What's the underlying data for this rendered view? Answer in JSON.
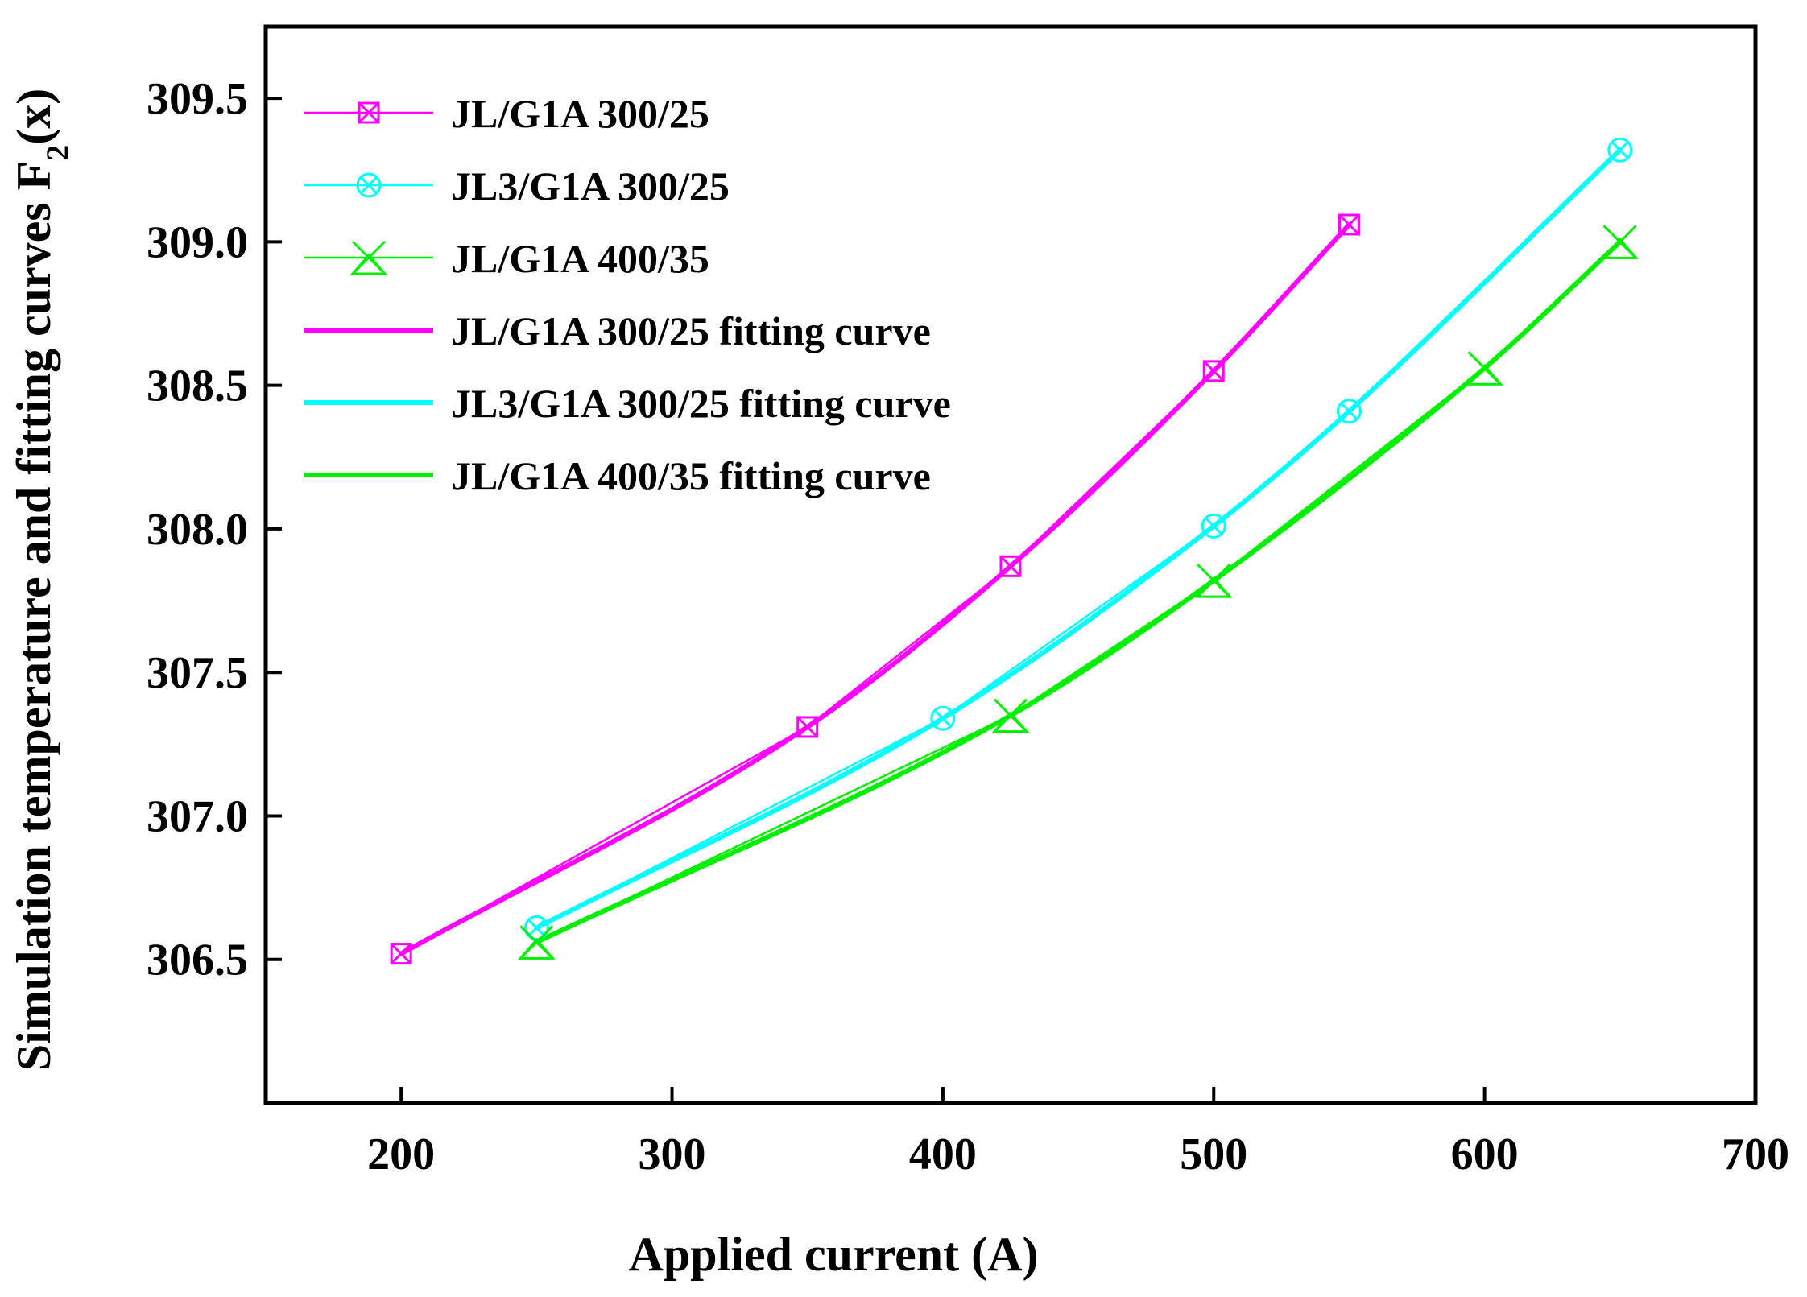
{
  "chart_data": {
    "type": "line",
    "title": "",
    "xlabel": "Applied current (A)",
    "ylabel": "Simulation temperature and fitting curves F",
    "ylabel_sub": "2",
    "ylabel_tail": "(x)",
    "xlim": [
      150,
      700
    ],
    "ylim": [
      306.0,
      309.75
    ],
    "xticks": [
      200,
      300,
      400,
      500,
      600,
      700
    ],
    "yticks": [
      306.5,
      307.0,
      307.5,
      308.0,
      308.5,
      309.0,
      309.5
    ],
    "xtick_labels": [
      "200",
      "300",
      "400",
      "500",
      "600",
      "700"
    ],
    "ytick_labels": [
      "306.5",
      "307.0",
      "307.5",
      "308.0",
      "308.5",
      "309.0",
      "309.5"
    ],
    "legend_position": "top-left",
    "series": [
      {
        "name": "JL/G1A 300/25",
        "kind": "simulation",
        "marker": "square-x",
        "color": "#ff00ff",
        "x": [
          200,
          350,
          425,
          500,
          550
        ],
        "y": [
          306.52,
          307.31,
          307.87,
          308.55,
          309.06
        ]
      },
      {
        "name": "JL3/G1A 300/25",
        "kind": "simulation",
        "marker": "circle-x",
        "color": "#00ffff",
        "x": [
          250,
          400,
          500,
          550,
          650
        ],
        "y": [
          306.61,
          307.34,
          308.01,
          308.41,
          309.32
        ]
      },
      {
        "name": "JL/G1A 400/35",
        "kind": "simulation",
        "marker": "triangle-x",
        "color": "#00ee00",
        "x": [
          250,
          425,
          500,
          600,
          650
        ],
        "y": [
          306.56,
          307.35,
          307.82,
          308.56,
          309.0
        ]
      },
      {
        "name": "JL/G1A 300/25 fitting curve",
        "kind": "fit",
        "color": "#ff00ff",
        "x": [
          200,
          350,
          425,
          500,
          550
        ],
        "y": [
          306.52,
          307.31,
          307.87,
          308.55,
          309.06
        ]
      },
      {
        "name": "JL3/G1A 300/25 fitting curve",
        "kind": "fit",
        "color": "#00ffff",
        "x": [
          250,
          400,
          500,
          550,
          650
        ],
        "y": [
          306.61,
          307.34,
          308.01,
          308.41,
          309.32
        ]
      },
      {
        "name": "JL/G1A 400/35 fitting curve",
        "kind": "fit",
        "color": "#00ee00",
        "x": [
          250,
          425,
          500,
          600,
          650
        ],
        "y": [
          306.56,
          307.35,
          307.82,
          308.56,
          309.0
        ]
      }
    ]
  }
}
